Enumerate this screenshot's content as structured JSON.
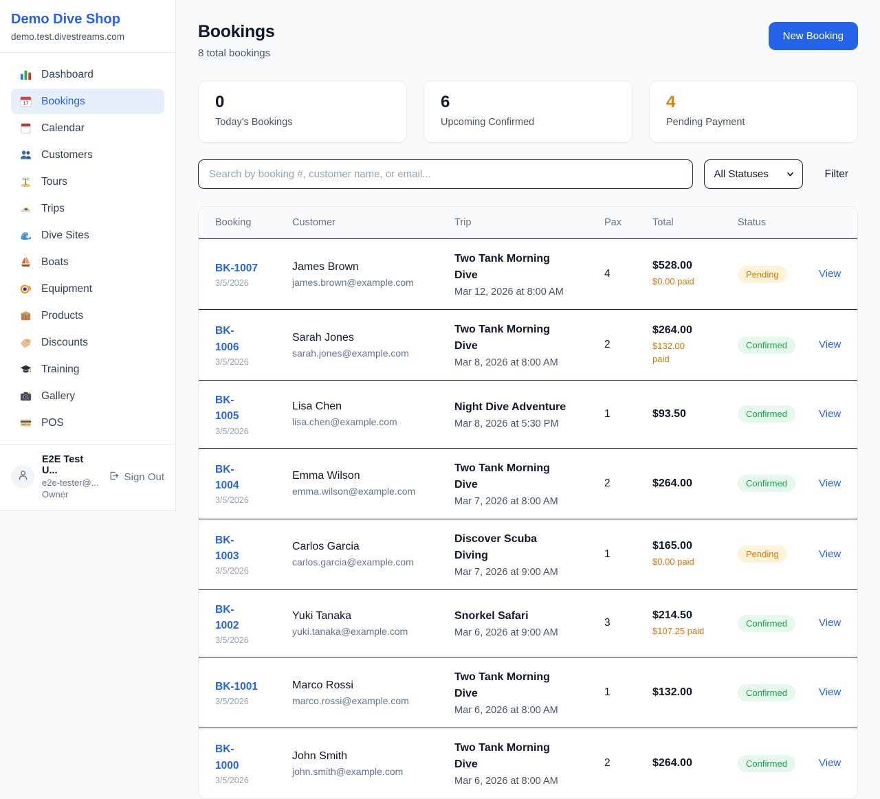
{
  "colors": {
    "accent": "#2563eb",
    "pending_text": "#d97706",
    "pending_bg": "#fdf3d8",
    "confirmed_text": "#17a34a",
    "confirmed_bg": "#e6f7ec",
    "paid_orange": "#d97706"
  },
  "sidebar": {
    "brand": "Demo Dive Shop",
    "domain": "demo.test.divestreams.com",
    "items": [
      {
        "icon": "bar-chart-icon",
        "label": "Dashboard",
        "active": false
      },
      {
        "icon": "bookings-calendar-icon",
        "label": "Bookings",
        "active": true
      },
      {
        "icon": "calendar-icon",
        "label": "Calendar",
        "active": false
      },
      {
        "icon": "customers-icon",
        "label": "Customers",
        "active": false
      },
      {
        "icon": "island-icon",
        "label": "Tours",
        "active": false
      },
      {
        "icon": "speedboat-icon",
        "label": "Trips",
        "active": false
      },
      {
        "icon": "wave-icon",
        "label": "Dive Sites",
        "active": false
      },
      {
        "icon": "sailboat-icon",
        "label": "Boats",
        "active": false
      },
      {
        "icon": "dive-mask-icon",
        "label": "Equipment",
        "active": false
      },
      {
        "icon": "package-icon",
        "label": "Products",
        "active": false
      },
      {
        "icon": "tag-icon",
        "label": "Discounts",
        "active": false
      },
      {
        "icon": "graduation-cap-icon",
        "label": "Training",
        "active": false
      },
      {
        "icon": "camera-icon",
        "label": "Gallery",
        "active": false
      },
      {
        "icon": "credit-card-icon",
        "label": "POS",
        "active": false
      }
    ],
    "user": {
      "name": "E2E Test U...",
      "email": "e2e-tester@...",
      "role": "Owner",
      "sign_out_label": "Sign Out"
    }
  },
  "header": {
    "title": "Bookings",
    "subtitle": "8 total bookings",
    "new_booking_label": "New Booking"
  },
  "stats": [
    {
      "value": "0",
      "label": "Today's Bookings",
      "value_color": "#0f172a"
    },
    {
      "value": "6",
      "label": "Upcoming Confirmed",
      "value_color": "#0f172a"
    },
    {
      "value": "4",
      "label": "Pending Payment",
      "value_color": "#dd830b"
    }
  ],
  "filters": {
    "search_placeholder": "Search by booking #, customer name, or email...",
    "status_selected": "All Statuses",
    "filter_label": "Filter"
  },
  "table": {
    "columns": [
      "Booking",
      "Customer",
      "Trip",
      "Pax",
      "Total",
      "Status"
    ],
    "view_label": "View",
    "rows": [
      {
        "id": "BK-1007",
        "id_lines": [
          "BK-1007"
        ],
        "date": "3/5/2026",
        "customer": "James Brown",
        "email": "james.brown@example.com",
        "trip": "Two Tank Morning Dive",
        "trip_lines": [
          "Two Tank Morning",
          "Dive"
        ],
        "trip_time": "Mar 12, 2026 at 8:00 AM",
        "pax": "4",
        "total": "$528.00",
        "paid": "$0.00 paid",
        "paid_lines": [
          "$0.00 paid"
        ],
        "status": "Pending"
      },
      {
        "id": "BK-1006",
        "id_lines": [
          "BK-",
          "1006"
        ],
        "date": "3/5/2026",
        "customer": "Sarah Jones",
        "email": "sarah.jones@example.com",
        "trip": "Two Tank Morning Dive",
        "trip_lines": [
          "Two Tank Morning",
          "Dive"
        ],
        "trip_time": "Mar 8, 2026 at 8:00 AM",
        "pax": "2",
        "total": "$264.00",
        "paid": "$132.00 paid",
        "paid_lines": [
          "$132.00",
          "paid"
        ],
        "status": "Confirmed"
      },
      {
        "id": "BK-1005",
        "id_lines": [
          "BK-",
          "1005"
        ],
        "date": "3/5/2026",
        "customer": "Lisa Chen",
        "email": "lisa.chen@example.com",
        "trip": "Night Dive Adventure",
        "trip_lines": [
          "Night Dive Adventure"
        ],
        "trip_time": "Mar 8, 2026 at 5:30 PM",
        "pax": "1",
        "total": "$93.50",
        "paid": null,
        "paid_lines": null,
        "status": "Confirmed"
      },
      {
        "id": "BK-1004",
        "id_lines": [
          "BK-",
          "1004"
        ],
        "date": "3/5/2026",
        "customer": "Emma Wilson",
        "email": "emma.wilson@example.com",
        "trip": "Two Tank Morning Dive",
        "trip_lines": [
          "Two Tank Morning",
          "Dive"
        ],
        "trip_time": "Mar 7, 2026 at 8:00 AM",
        "pax": "2",
        "total": "$264.00",
        "paid": null,
        "paid_lines": null,
        "status": "Confirmed"
      },
      {
        "id": "BK-1003",
        "id_lines": [
          "BK-",
          "1003"
        ],
        "date": "3/5/2026",
        "customer": "Carlos Garcia",
        "email": "carlos.garcia@example.com",
        "trip": "Discover Scuba Diving",
        "trip_lines": [
          "Discover Scuba",
          "Diving"
        ],
        "trip_time": "Mar 7, 2026 at 9:00 AM",
        "pax": "1",
        "total": "$165.00",
        "paid": "$0.00 paid",
        "paid_lines": [
          "$0.00 paid"
        ],
        "status": "Pending"
      },
      {
        "id": "BK-1002",
        "id_lines": [
          "BK-",
          "1002"
        ],
        "date": "3/5/2026",
        "customer": "Yuki Tanaka",
        "email": "yuki.tanaka@example.com",
        "trip": "Snorkel Safari",
        "trip_lines": [
          "Snorkel Safari"
        ],
        "trip_time": "Mar 6, 2026 at 9:00 AM",
        "pax": "3",
        "total": "$214.50",
        "paid": "$107.25 paid",
        "paid_lines": [
          "$107.25 paid"
        ],
        "status": "Confirmed"
      },
      {
        "id": "BK-1001",
        "id_lines": [
          "BK-1001"
        ],
        "date": "3/5/2026",
        "customer": "Marco Rossi",
        "email": "marco.rossi@example.com",
        "trip": "Two Tank Morning Dive",
        "trip_lines": [
          "Two Tank Morning",
          "Dive"
        ],
        "trip_time": "Mar 6, 2026 at 8:00 AM",
        "pax": "1",
        "total": "$132.00",
        "paid": null,
        "paid_lines": null,
        "status": "Confirmed"
      },
      {
        "id": "BK-1000",
        "id_lines": [
          "BK-",
          "1000"
        ],
        "date": "3/5/2026",
        "customer": "John Smith",
        "email": "john.smith@example.com",
        "trip": "Two Tank Morning Dive",
        "trip_lines": [
          "Two Tank Morning",
          "Dive"
        ],
        "trip_time": "Mar 6, 2026 at 8:00 AM",
        "pax": "2",
        "total": "$264.00",
        "paid": null,
        "paid_lines": null,
        "status": "Confirmed"
      }
    ]
  }
}
